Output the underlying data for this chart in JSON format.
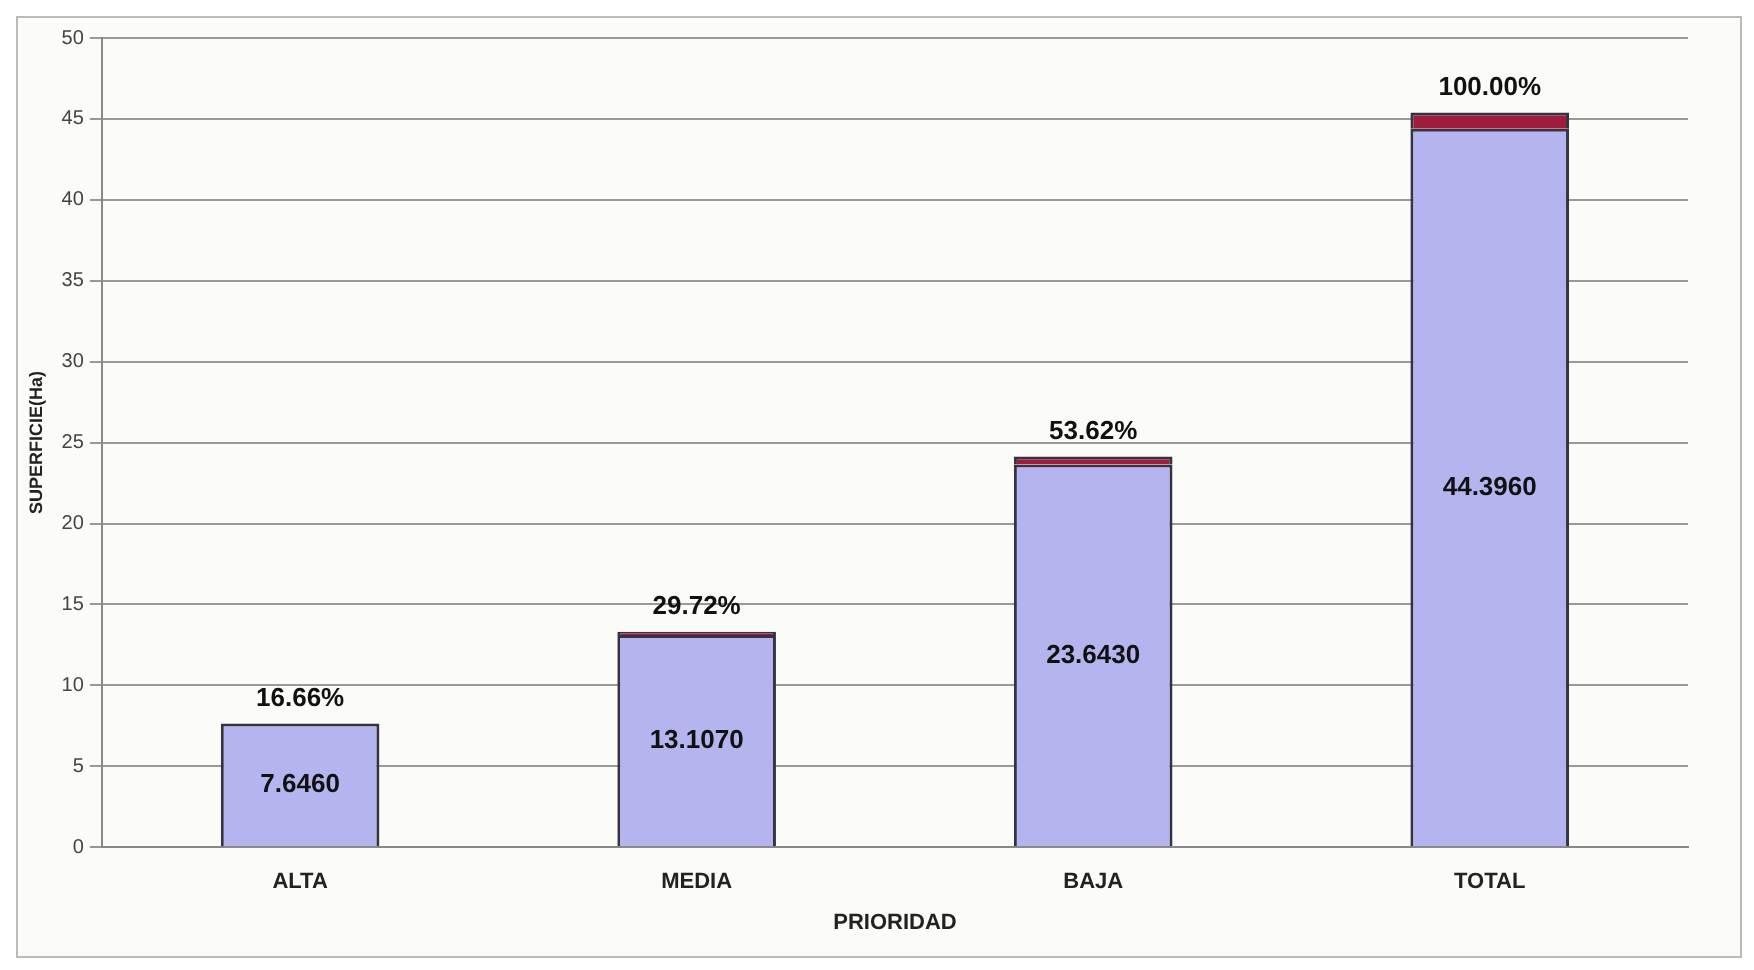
{
  "chart_data": {
    "type": "bar",
    "stacked": true,
    "xlabel": "PRIORIDAD",
    "ylabel": "SUPERFICIE(Ha)",
    "categories": [
      "ALTA",
      "MEDIA",
      "BAJA",
      "TOTAL"
    ],
    "series": [
      {
        "color": "#b4b4ee",
        "values": [
          7.646,
          13.107,
          23.643,
          44.396
        ],
        "value_labels": [
          "7.6460",
          "13.1070",
          "23.6430",
          "44.3960"
        ]
      },
      {
        "color": "#a01c3c",
        "values": [
          0,
          0.2,
          0.5,
          1.0
        ]
      }
    ],
    "annotations": [
      {
        "text": "16.66%",
        "x": "ALTA",
        "y": 7.646
      },
      {
        "text": "29.72%",
        "x": "MEDIA",
        "y": 13.307
      },
      {
        "text": "53.62%",
        "x": "BAJA",
        "y": 24.143
      },
      {
        "text": "100.00%",
        "x": "TOTAL",
        "y": 45.396
      }
    ],
    "ylim": [
      0,
      50
    ],
    "yticks": [
      0,
      5,
      10,
      15,
      20,
      25,
      30,
      35,
      40,
      45,
      50
    ],
    "grid": "y",
    "legend": false
  }
}
